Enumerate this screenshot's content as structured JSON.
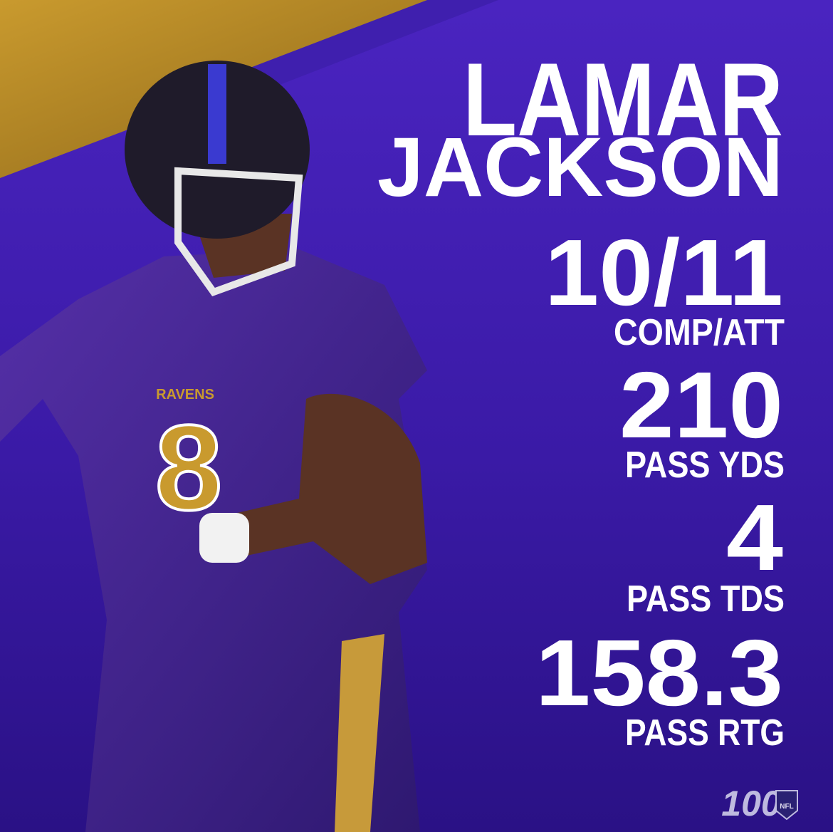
{
  "player": {
    "first_name": "LAMAR",
    "last_name": "JACKSON"
  },
  "stats": [
    {
      "value": "10/11",
      "label": "COMP/ATT"
    },
    {
      "value": 210,
      "label": "PASS YDS"
    },
    {
      "value": 4,
      "label": "PASS TDS"
    },
    {
      "value": 158.3,
      "label": "PASS RTG"
    }
  ],
  "jersey": {
    "team": "RAVENS",
    "number": 8
  },
  "logo": {
    "number": "100",
    "league": "NFL"
  }
}
